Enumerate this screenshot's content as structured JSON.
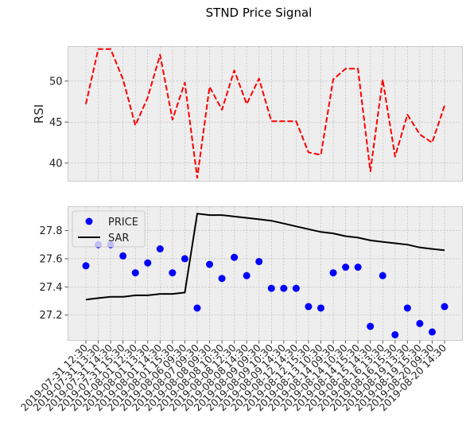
{
  "chart_data": [
    {
      "type": "line",
      "title": "STND Price Signal",
      "ylabel": "RSI",
      "ylim": [
        37.8,
        54.2
      ],
      "yticks": [
        40,
        45,
        50
      ],
      "grid": true,
      "series": [
        {
          "color": "#ff0000",
          "linestyle": "dashed",
          "values": [
            47.2,
            53.9,
            53.9,
            50.2,
            44.6,
            48.0,
            53.2,
            45.3,
            49.8,
            38.2,
            49.3,
            46.5,
            51.3,
            47.2,
            50.3,
            45.1,
            45.1,
            45.1,
            41.3,
            41.0,
            50.2,
            51.5,
            51.5,
            39.0,
            50.2,
            40.8,
            45.9,
            43.5,
            42.5,
            47.0
          ]
        }
      ]
    },
    {
      "type": "line",
      "ylim": [
        27.02,
        27.97
      ],
      "yticks": [
        27.2,
        27.4,
        27.6,
        27.8
      ],
      "grid": true,
      "legend": "top-left",
      "x": [
        "2019-07-31 12:30",
        "2019-07-31 13:30",
        "2019-07-31 14:30",
        "2019-07-31 15:30",
        "2019-08-01 12:30",
        "2019-08-01 13:30",
        "2019-08-01 14:30",
        "2019-08-01 15:30",
        "2019-08-06 09:30",
        "2019-08-07 09:30",
        "2019-08-08 09:30",
        "2019-08-08 10:30",
        "2019-08-08 12:30",
        "2019-08-08 14:30",
        "2019-08-09 09:30",
        "2019-08-09 10:30",
        "2019-08-09 14:30",
        "2019-08-12 14:30",
        "2019-08-12 15:30",
        "2019-08-13 10:30",
        "2019-08-14 09:30",
        "2019-08-14 10:30",
        "2019-08-14 15:30",
        "2019-08-15 14:30",
        "2019-08-16 13:30",
        "2019-08-16 15:30",
        "2019-08-19 13:30",
        "2019-08-19 15:30",
        "2019-08-20 09:30",
        "2019-08-20 14:30"
      ],
      "series": [
        {
          "name": "PRICE",
          "kind": "scatter",
          "color": "#0000ff",
          "values": [
            27.55,
            27.7,
            27.7,
            27.62,
            27.5,
            27.57,
            27.67,
            27.5,
            27.6,
            27.25,
            27.56,
            27.46,
            27.61,
            27.48,
            27.58,
            27.39,
            27.39,
            27.39,
            27.26,
            27.25,
            27.5,
            27.54,
            27.54,
            27.12,
            27.48,
            27.06,
            27.25,
            27.14,
            27.08,
            27.26
          ]
        },
        {
          "name": "SAR",
          "kind": "line",
          "color": "#000000",
          "values": [
            27.31,
            27.32,
            27.33,
            27.33,
            27.34,
            27.34,
            27.35,
            27.35,
            27.36,
            27.92,
            27.91,
            27.91,
            27.9,
            27.89,
            27.88,
            27.87,
            27.85,
            27.83,
            27.81,
            27.79,
            27.78,
            27.76,
            27.75,
            27.73,
            27.72,
            27.71,
            27.7,
            27.68,
            27.67,
            27.66
          ]
        }
      ]
    }
  ]
}
